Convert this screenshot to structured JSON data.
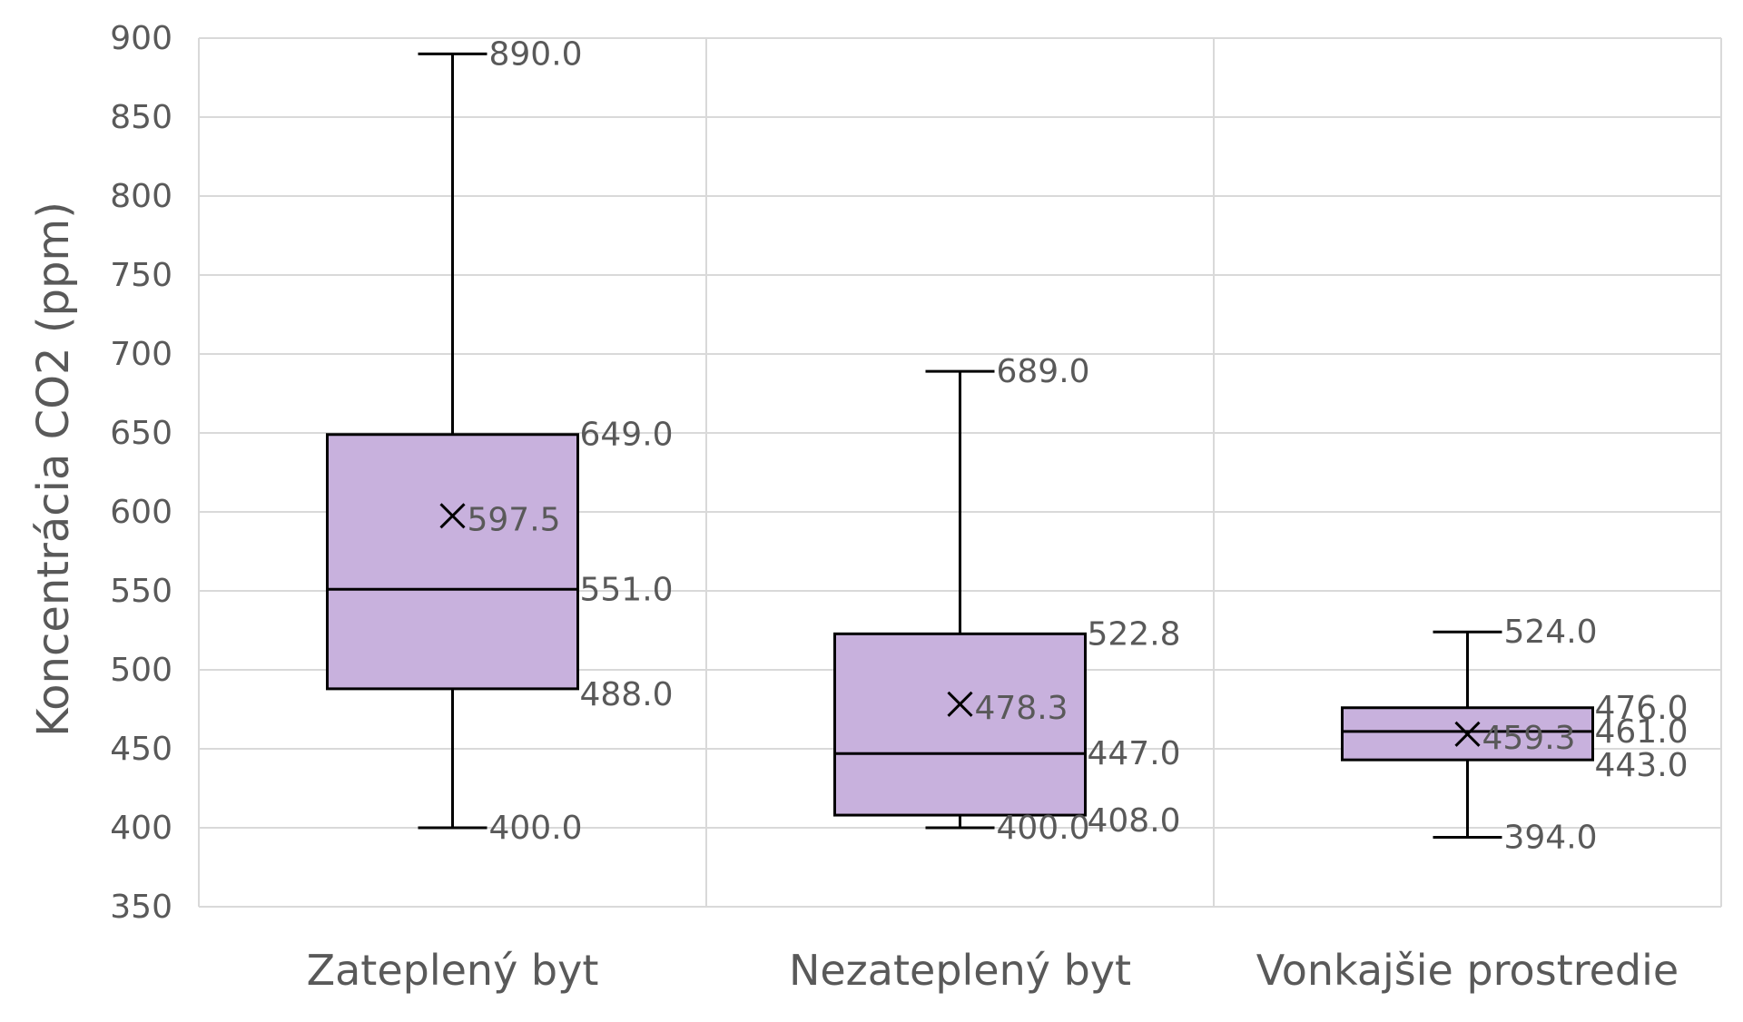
{
  "chart_data": {
    "type": "box",
    "title": "",
    "xlabel": "",
    "ylabel": "Koncentrácia CO2 (ppm)",
    "ylim": [
      350,
      900
    ],
    "yticks": [
      350,
      400,
      450,
      500,
      550,
      600,
      650,
      700,
      750,
      800,
      850,
      900
    ],
    "ytick_labels": [
      "350",
      "400",
      "450",
      "500",
      "550",
      "600",
      "650",
      "700",
      "750",
      "800",
      "850",
      "900"
    ],
    "grid": true,
    "box_color": "#c8b1dd",
    "line_color": "#000000",
    "categories": [
      "Zateplený byt",
      "Nezateplený byt",
      "Vonkajšie prostredie"
    ],
    "boxes": [
      {
        "name": "Zateplený byt",
        "min": 400.0,
        "q1": 488.0,
        "median": 551.0,
        "q3": 649.0,
        "max": 890.0,
        "mean": 597.5,
        "labels": {
          "min": "400.0",
          "q1": "488.0",
          "median": "551.0",
          "q3": "649.0",
          "max": "890.0",
          "mean": "597.5"
        }
      },
      {
        "name": "Nezateplený byt",
        "min": 400.0,
        "q1": 408.0,
        "median": 447.0,
        "q3": 522.8,
        "max": 689.0,
        "mean": 478.3,
        "labels": {
          "min": "400.0",
          "q1": "408.0",
          "median": "447.0",
          "q3": "522.8",
          "max": "689.0",
          "mean": "478.3"
        }
      },
      {
        "name": "Vonkajšie prostredie",
        "min": 394.0,
        "q1": 443.0,
        "median": 461.0,
        "q3": 476.0,
        "max": 524.0,
        "mean": 459.3,
        "labels": {
          "min": "394.0",
          "q1": "443.0",
          "median": "461.0",
          "q3": "476.0",
          "max": "524.0",
          "mean": "459.3"
        }
      }
    ]
  }
}
